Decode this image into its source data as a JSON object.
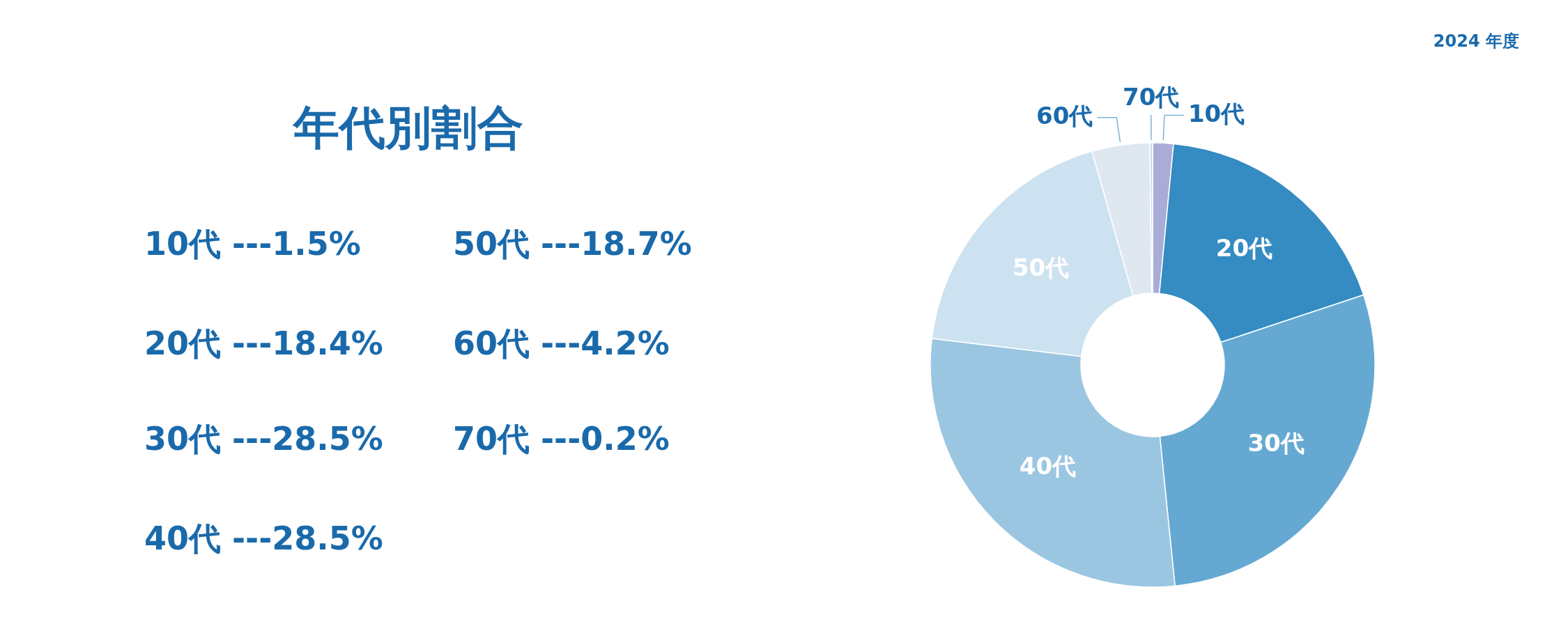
{
  "chart_data": {
    "type": "donut",
    "title": "年代別割合",
    "subtitle": "2024 年度",
    "categories": [
      "10代",
      "20代",
      "30代",
      "40代",
      "50代",
      "60代",
      "70代"
    ],
    "values": [
      1.5,
      18.4,
      28.5,
      28.5,
      18.7,
      4.2,
      0.2
    ],
    "colors": [
      "#a9acd6",
      "#348cc2",
      "#65a9d3",
      "#9bc6e1",
      "#cde2f0",
      "#dfe8f1",
      "#c8dde0"
    ],
    "annotations": [
      "10代 ---1.5%",
      "20代 ---18.4%",
      "30代 ---28.5%",
      "40代 ---28.5%",
      "50代 ---18.7%",
      "60代 ---4.2%",
      "70代 ---0.2%"
    ]
  }
}
